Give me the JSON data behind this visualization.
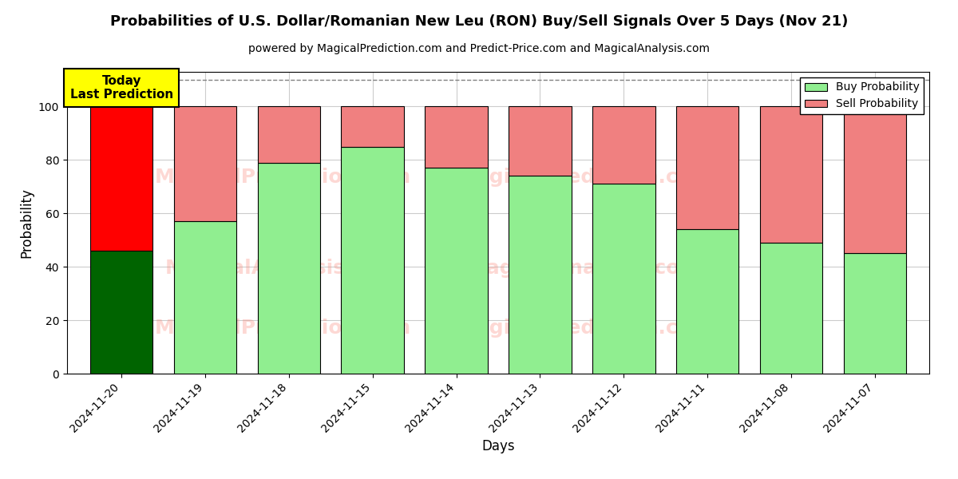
{
  "title": "Probabilities of U.S. Dollar/Romanian New Leu (RON) Buy/Sell Signals Over 5 Days (Nov 21)",
  "subtitle": "powered by MagicalPrediction.com and Predict-Price.com and MagicalAnalysis.com",
  "xlabel": "Days",
  "ylabel": "Probability",
  "dates": [
    "2024-11-20",
    "2024-11-19",
    "2024-11-18",
    "2024-11-15",
    "2024-11-14",
    "2024-11-13",
    "2024-11-12",
    "2024-11-11",
    "2024-11-08",
    "2024-11-07"
  ],
  "buy_values": [
    46,
    57,
    79,
    85,
    77,
    74,
    71,
    54,
    49,
    45
  ],
  "sell_values": [
    54,
    43,
    21,
    15,
    23,
    26,
    29,
    46,
    51,
    55
  ],
  "today_buy_color": "#006400",
  "today_sell_color": "#ff0000",
  "buy_color": "#90EE90",
  "sell_color": "#F08080",
  "today_annotation_bg": "#ffff00",
  "today_annotation_text": "Today\nLast Prediction",
  "ylim": [
    0,
    113
  ],
  "yticks": [
    0,
    20,
    40,
    60,
    80,
    100
  ],
  "dashed_line_y": 110,
  "bar_width": 0.75,
  "legend_buy_label": "Buy Probability",
  "legend_sell_label": "Sell Probability",
  "background_color": "#ffffff",
  "grid_color": "#cccccc",
  "title_fontsize": 13,
  "subtitle_fontsize": 10
}
